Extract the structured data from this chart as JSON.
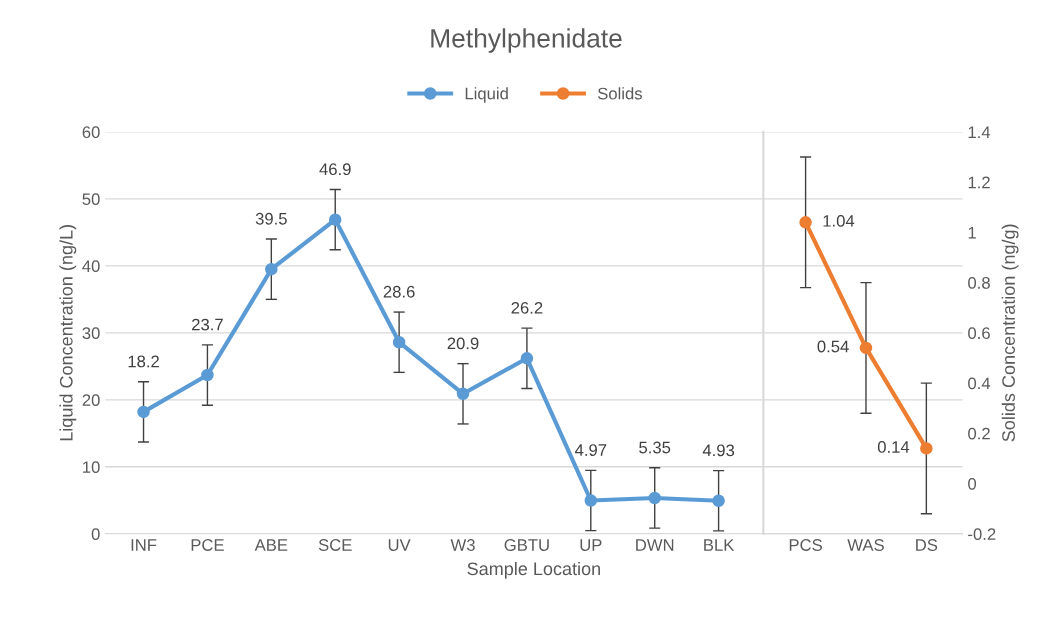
{
  "chart_data": [
    {
      "type": "line",
      "title": "Methylphenidate",
      "xlabel": "Sample Location",
      "ylabel": "Liquid Concentration (ng/L)",
      "categories": [
        "INF",
        "PCE",
        "ABE",
        "SCE",
        "UV",
        "W3",
        "GBTU",
        "UP",
        "DWN",
        "BLK"
      ],
      "series": [
        {
          "name": "Liquid",
          "color": "#5b9bd5",
          "values": [
            18.2,
            23.7,
            39.5,
            46.9,
            28.6,
            20.9,
            26.2,
            4.97,
            5.35,
            4.93
          ],
          "errors": [
            4.5,
            4.5,
            4.5,
            4.5,
            4.5,
            4.5,
            4.5,
            4.5,
            4.5,
            4.5
          ]
        }
      ],
      "ylim": [
        0,
        60
      ],
      "yticks": [
        0,
        10,
        20,
        30,
        40,
        50,
        60
      ],
      "data_labels": true,
      "grid": "y",
      "legend": "top",
      "marker": "circle",
      "line_style": "solid"
    },
    {
      "type": "line",
      "y2label": "Solids Concentration (ng/g)",
      "categories": [
        "PCS",
        "WAS",
        "DS"
      ],
      "series": [
        {
          "name": "Solids",
          "color": "#ed7d31",
          "axis": "y2",
          "values": [
            1.04,
            0.54,
            0.14
          ],
          "errors": [
            0.26,
            0.26,
            0.26
          ]
        }
      ],
      "y2lim": [
        -0.2,
        1.4
      ],
      "y2ticks": [
        -0.2,
        0,
        0.2,
        0.4,
        0.6,
        0.8,
        1,
        1.2,
        1.4
      ],
      "data_labels": true,
      "grid": "y",
      "legend": "top",
      "marker": "circle",
      "line_style": "solid"
    }
  ]
}
